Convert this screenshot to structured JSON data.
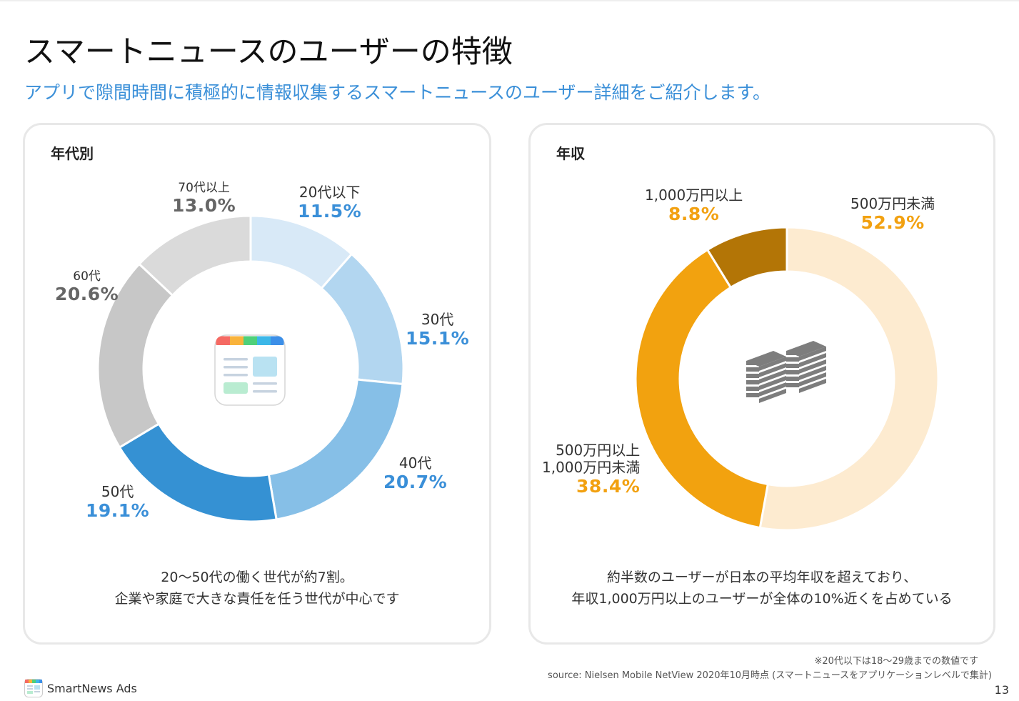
{
  "header": {
    "title": "スマートニュースのユーザーの特徴",
    "subtitle": "アプリで隙間時間に積極的に情報収集するスマートニュースのユーザー詳細をご紹介します。"
  },
  "colors": {
    "accent_blue": "#3a8fd8",
    "accent_orange": "#f2a111"
  },
  "chart_data": [
    {
      "type": "pie",
      "title": "年代別",
      "categories": [
        "20代以下",
        "30代",
        "40代",
        "50代",
        "60代",
        "70代以上"
      ],
      "values": [
        11.5,
        15.1,
        20.7,
        19.1,
        20.6,
        13.0
      ],
      "value_labels": [
        "11.5%",
        "15.1%",
        "20.7%",
        "19.1%",
        "20.6%",
        "13.0%"
      ],
      "colors": [
        "#d8e9f7",
        "#b2d6f0",
        "#86bfe7",
        "#3591d3",
        "#c7c7c7",
        "#dadada"
      ],
      "label_colors": [
        "#3a8fd8",
        "#3a8fd8",
        "#3a8fd8",
        "#3a8fd8",
        "#666666",
        "#666666"
      ],
      "center_icon": "smartnews-app-icon",
      "caption": [
        "20〜50代の働く世代が約7割。",
        "企業や家庭で大きな責任を任う世代が中心です"
      ]
    },
    {
      "type": "pie",
      "title": "年収",
      "categories": [
        "500万円未満",
        "500万円以上 1,000万円未満",
        "1,000万円以上"
      ],
      "category_lines": [
        [
          "500万円未満"
        ],
        [
          "500万円以上",
          "1,000万円未満"
        ],
        [
          "1,000万円以上"
        ]
      ],
      "values": [
        52.9,
        38.4,
        8.8
      ],
      "value_labels": [
        "52.9%",
        "38.4%",
        "8.8%"
      ],
      "colors": [
        "#fdebd0",
        "#f2a20f",
        "#b37506"
      ],
      "label_colors": [
        "#f2a111",
        "#f2a111",
        "#f2a111"
      ],
      "center_icon": "money-stack-icon",
      "caption": [
        "約半数のユーザーが日本の平均年収を超えており、",
        "年収1,000万円以上のユーザーが全体の10%近くを占めている"
      ]
    }
  ],
  "footer": {
    "note": "※20代以下は18〜29歳までの数値です",
    "source": "source: Nielsen Mobile NetView 2020年10月時点 (スマートニュースをアプリケーションレベルで集計)",
    "brand": "SmartNews Ads",
    "page_number": "13"
  }
}
